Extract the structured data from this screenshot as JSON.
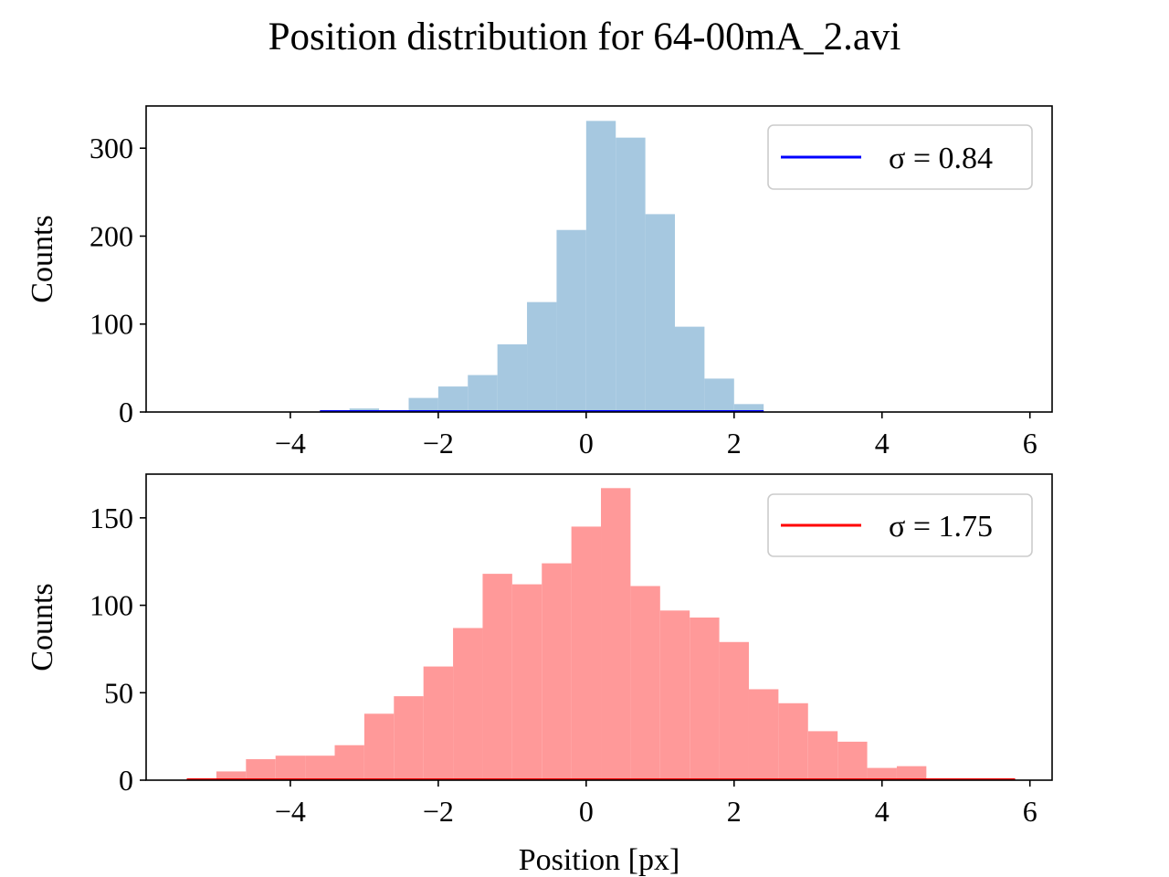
{
  "title": "Position distribution for 64-00mA_2.avi",
  "chart_data": [
    {
      "type": "bar",
      "subtype": "histogram",
      "ylabel": "Counts",
      "xlabel": "",
      "xlim": [
        -5.95,
        6.3
      ],
      "ylim": [
        0,
        348
      ],
      "xticks": [
        -4,
        -2,
        0,
        2,
        4,
        6
      ],
      "yticks": [
        0,
        100,
        200,
        300
      ],
      "bin_start": -3.6,
      "bin_width": 0.4,
      "values": [
        1,
        4,
        2,
        16,
        29,
        42,
        77,
        125,
        207,
        331,
        312,
        225,
        97,
        38,
        9
      ],
      "bar_color": "#a6c8e0",
      "legend": {
        "label": "σ = 0.84",
        "color": "#0000ff",
        "placement": "upper right"
      }
    },
    {
      "type": "bar",
      "subtype": "histogram",
      "ylabel": "Counts",
      "xlabel": "Position [px]",
      "xlim": [
        -5.95,
        6.3
      ],
      "ylim": [
        0,
        175
      ],
      "xticks": [
        -4,
        -2,
        0,
        2,
        4,
        6
      ],
      "yticks": [
        0,
        50,
        100,
        150
      ],
      "bin_start": -5.4,
      "bin_width": 0.4,
      "values": [
        1,
        5,
        12,
        14,
        14,
        20,
        38,
        48,
        65,
        87,
        118,
        112,
        124,
        145,
        167,
        111,
        97,
        93,
        79,
        52,
        44,
        28,
        22,
        7,
        8,
        1,
        1,
        1
      ],
      "bar_color": "#ff9999",
      "legend": {
        "label": "σ = 1.75",
        "color": "#ff0000",
        "placement": "upper right"
      }
    }
  ]
}
